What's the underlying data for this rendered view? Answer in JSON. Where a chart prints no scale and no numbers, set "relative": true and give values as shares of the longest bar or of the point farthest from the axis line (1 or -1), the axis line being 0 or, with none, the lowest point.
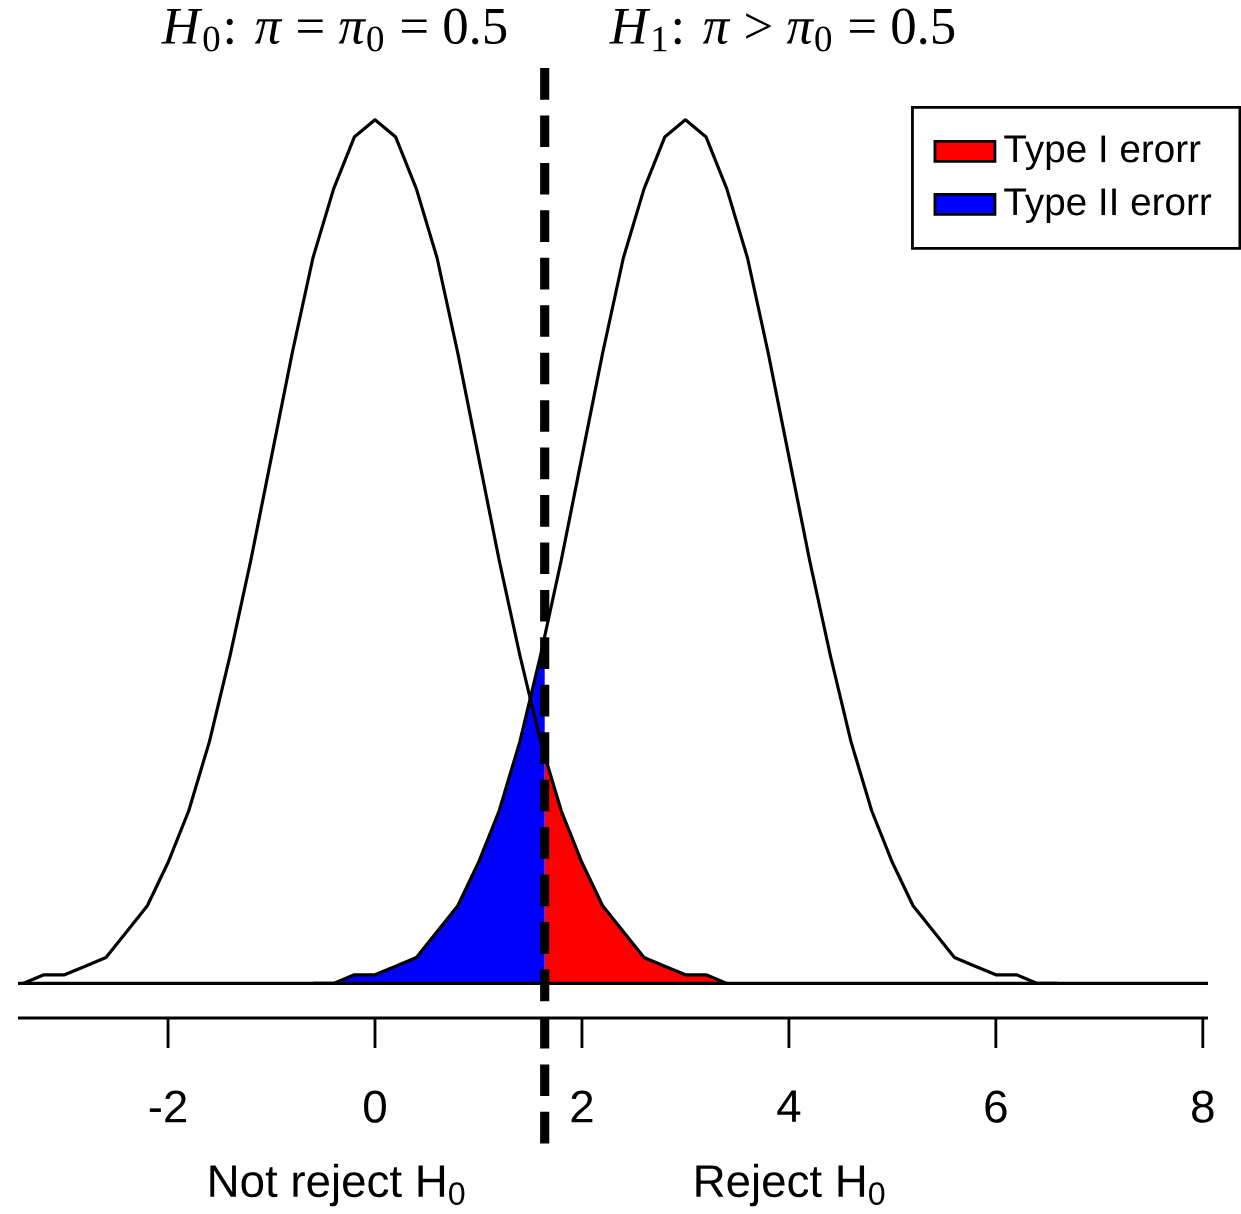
{
  "chart_data": {
    "type": "line",
    "relative": true,
    "annotations": [
      "*H*$_{0}$: *π* = *π*$_{0}$ = 0.5",
      "*H*$_{1}$: *π* > *π*$_{0}$ = 0.5",
      "Not reject H$_{0}$",
      "Reject H$_{0}$"
    ],
    "xlim": [
      -3.45,
      8.05
    ],
    "xticks": [
      -2,
      0,
      2,
      4,
      6,
      8
    ],
    "legend": "top right",
    "ref_lines": [
      {
        "axis": "x",
        "value": 1.64,
        "line_style": "dashed",
        "color": "#000000"
      },
      {
        "axis": "y",
        "value": 0,
        "color": "#000000"
      }
    ],
    "series": [
      {
        "type": "area",
        "name": "Type I erorr",
        "color": "#ff0000",
        "x": [
          1.64,
          1.8,
          2.0,
          2.2,
          2.4,
          2.6,
          2.8,
          3.0,
          3.2,
          3.4,
          3.6
        ],
        "values": [
          0.26,
          0.2,
          0.14,
          0.09,
          0.06,
          0.03,
          0.02,
          0.01,
          0.01,
          0,
          0
        ]
      },
      {
        "type": "area",
        "name": "Type II erorr",
        "color": "#0000ff",
        "x": [
          -0.6,
          -0.4,
          -0.2,
          0.0,
          0.2,
          0.4,
          0.6,
          0.8,
          1.0,
          1.2,
          1.4,
          1.6,
          1.64
        ],
        "values": [
          0,
          0,
          0.01,
          0.01,
          0.02,
          0.03,
          0.06,
          0.09,
          0.14,
          0.2,
          0.28,
          0.38,
          0.4
        ]
      },
      {
        "color": "#000000",
        "x": [
          -3.4,
          -3.2,
          -3.0,
          -2.8,
          -2.6,
          -2.4,
          -2.2,
          -2.0,
          -1.8,
          -1.6,
          -1.4,
          -1.2,
          -1.0,
          -0.8,
          -0.6,
          -0.4,
          -0.2,
          0.0,
          0.2,
          0.4,
          0.6,
          0.8,
          1.0,
          1.2,
          1.4,
          1.6,
          1.8,
          2.0,
          2.2,
          2.4,
          2.6,
          2.8,
          3.0,
          3.2,
          3.4
        ],
        "values": [
          0,
          0.01,
          0.01,
          0.02,
          0.03,
          0.06,
          0.09,
          0.14,
          0.2,
          0.28,
          0.38,
          0.49,
          0.61,
          0.73,
          0.84,
          0.92,
          0.98,
          1,
          0.98,
          0.92,
          0.84,
          0.73,
          0.61,
          0.49,
          0.38,
          0.28,
          0.2,
          0.14,
          0.09,
          0.06,
          0.03,
          0.02,
          0.01,
          0.01,
          0
        ]
      },
      {
        "color": "#000000",
        "x": [
          -0.6,
          -0.4,
          -0.2,
          0.0,
          0.2,
          0.4,
          0.6,
          0.8,
          1.0,
          1.2,
          1.4,
          1.6,
          1.8,
          2.0,
          2.2,
          2.4,
          2.6,
          2.8,
          3.0,
          3.2,
          3.4,
          3.6,
          3.8,
          4.0,
          4.2,
          4.4,
          4.6,
          4.8,
          5.0,
          5.2,
          5.4,
          5.6,
          5.8,
          6.0,
          6.2,
          6.4,
          6.6
        ],
        "values": [
          0,
          0,
          0.01,
          0.01,
          0.02,
          0.03,
          0.06,
          0.09,
          0.14,
          0.2,
          0.28,
          0.38,
          0.49,
          0.61,
          0.73,
          0.84,
          0.92,
          0.98,
          1,
          0.98,
          0.92,
          0.84,
          0.73,
          0.61,
          0.49,
          0.38,
          0.28,
          0.2,
          0.14,
          0.09,
          0.06,
          0.03,
          0.02,
          0.01,
          0.01,
          0,
          0
        ]
      }
    ]
  }
}
